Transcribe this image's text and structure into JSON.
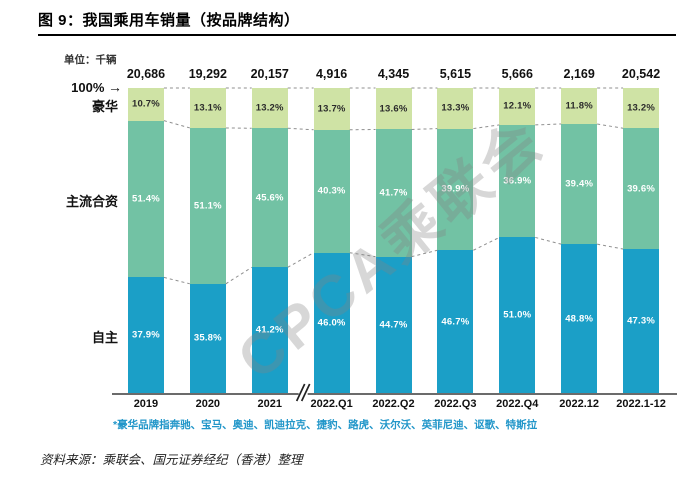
{
  "title": "图 9：我国乘用车销量（按品牌结构）",
  "unit_label": "单位：千辆",
  "y_axis_label": "100%",
  "icons": {
    "right_arrow": "→"
  },
  "watermark": "CPCA乘联会",
  "footnote": "*豪华品牌指奔驰、宝马、奥迪、凯迪拉克、捷豹、路虎、沃尔沃、英菲尼迪、讴歌、特斯拉",
  "source": "资料来源：乘联会、国元证券经纪（香港）整理",
  "chart_data": {
    "type": "bar",
    "stacked": true,
    "title": "我国乘用车销量（按品牌结构）",
    "unit": "千辆",
    "ylabel": "100%",
    "ylim": [
      0,
      100
    ],
    "grid": false,
    "legend_position": "left-of-plot",
    "axis_break_after_index": 2,
    "categories": [
      "2019",
      "2020",
      "2021",
      "2022.Q1",
      "2022.Q2",
      "2022.Q3",
      "2022.Q4",
      "2022.12",
      "2022.1-12"
    ],
    "totals": [
      "20,686",
      "19,292",
      "20,157",
      "4,916",
      "4,345",
      "5,615",
      "5,666",
      "2,169",
      "20,542"
    ],
    "series": [
      {
        "name": "豪华",
        "color": "#cfe3a5",
        "label_color": "#2b2b2b",
        "values": [
          10.7,
          13.1,
          13.2,
          13.7,
          13.6,
          13.3,
          12.1,
          11.8,
          13.2
        ]
      },
      {
        "name": "主流合资",
        "color": "#72c2a4",
        "label_color": "#ffffff",
        "values": [
          51.4,
          51.1,
          45.6,
          40.3,
          41.7,
          39.9,
          36.9,
          39.4,
          39.6
        ]
      },
      {
        "name": "自主",
        "color": "#1b9fc7",
        "label_color": "#ffffff",
        "values": [
          37.9,
          35.8,
          41.2,
          46.0,
          44.7,
          46.7,
          51.0,
          48.8,
          47.3
        ]
      }
    ]
  }
}
